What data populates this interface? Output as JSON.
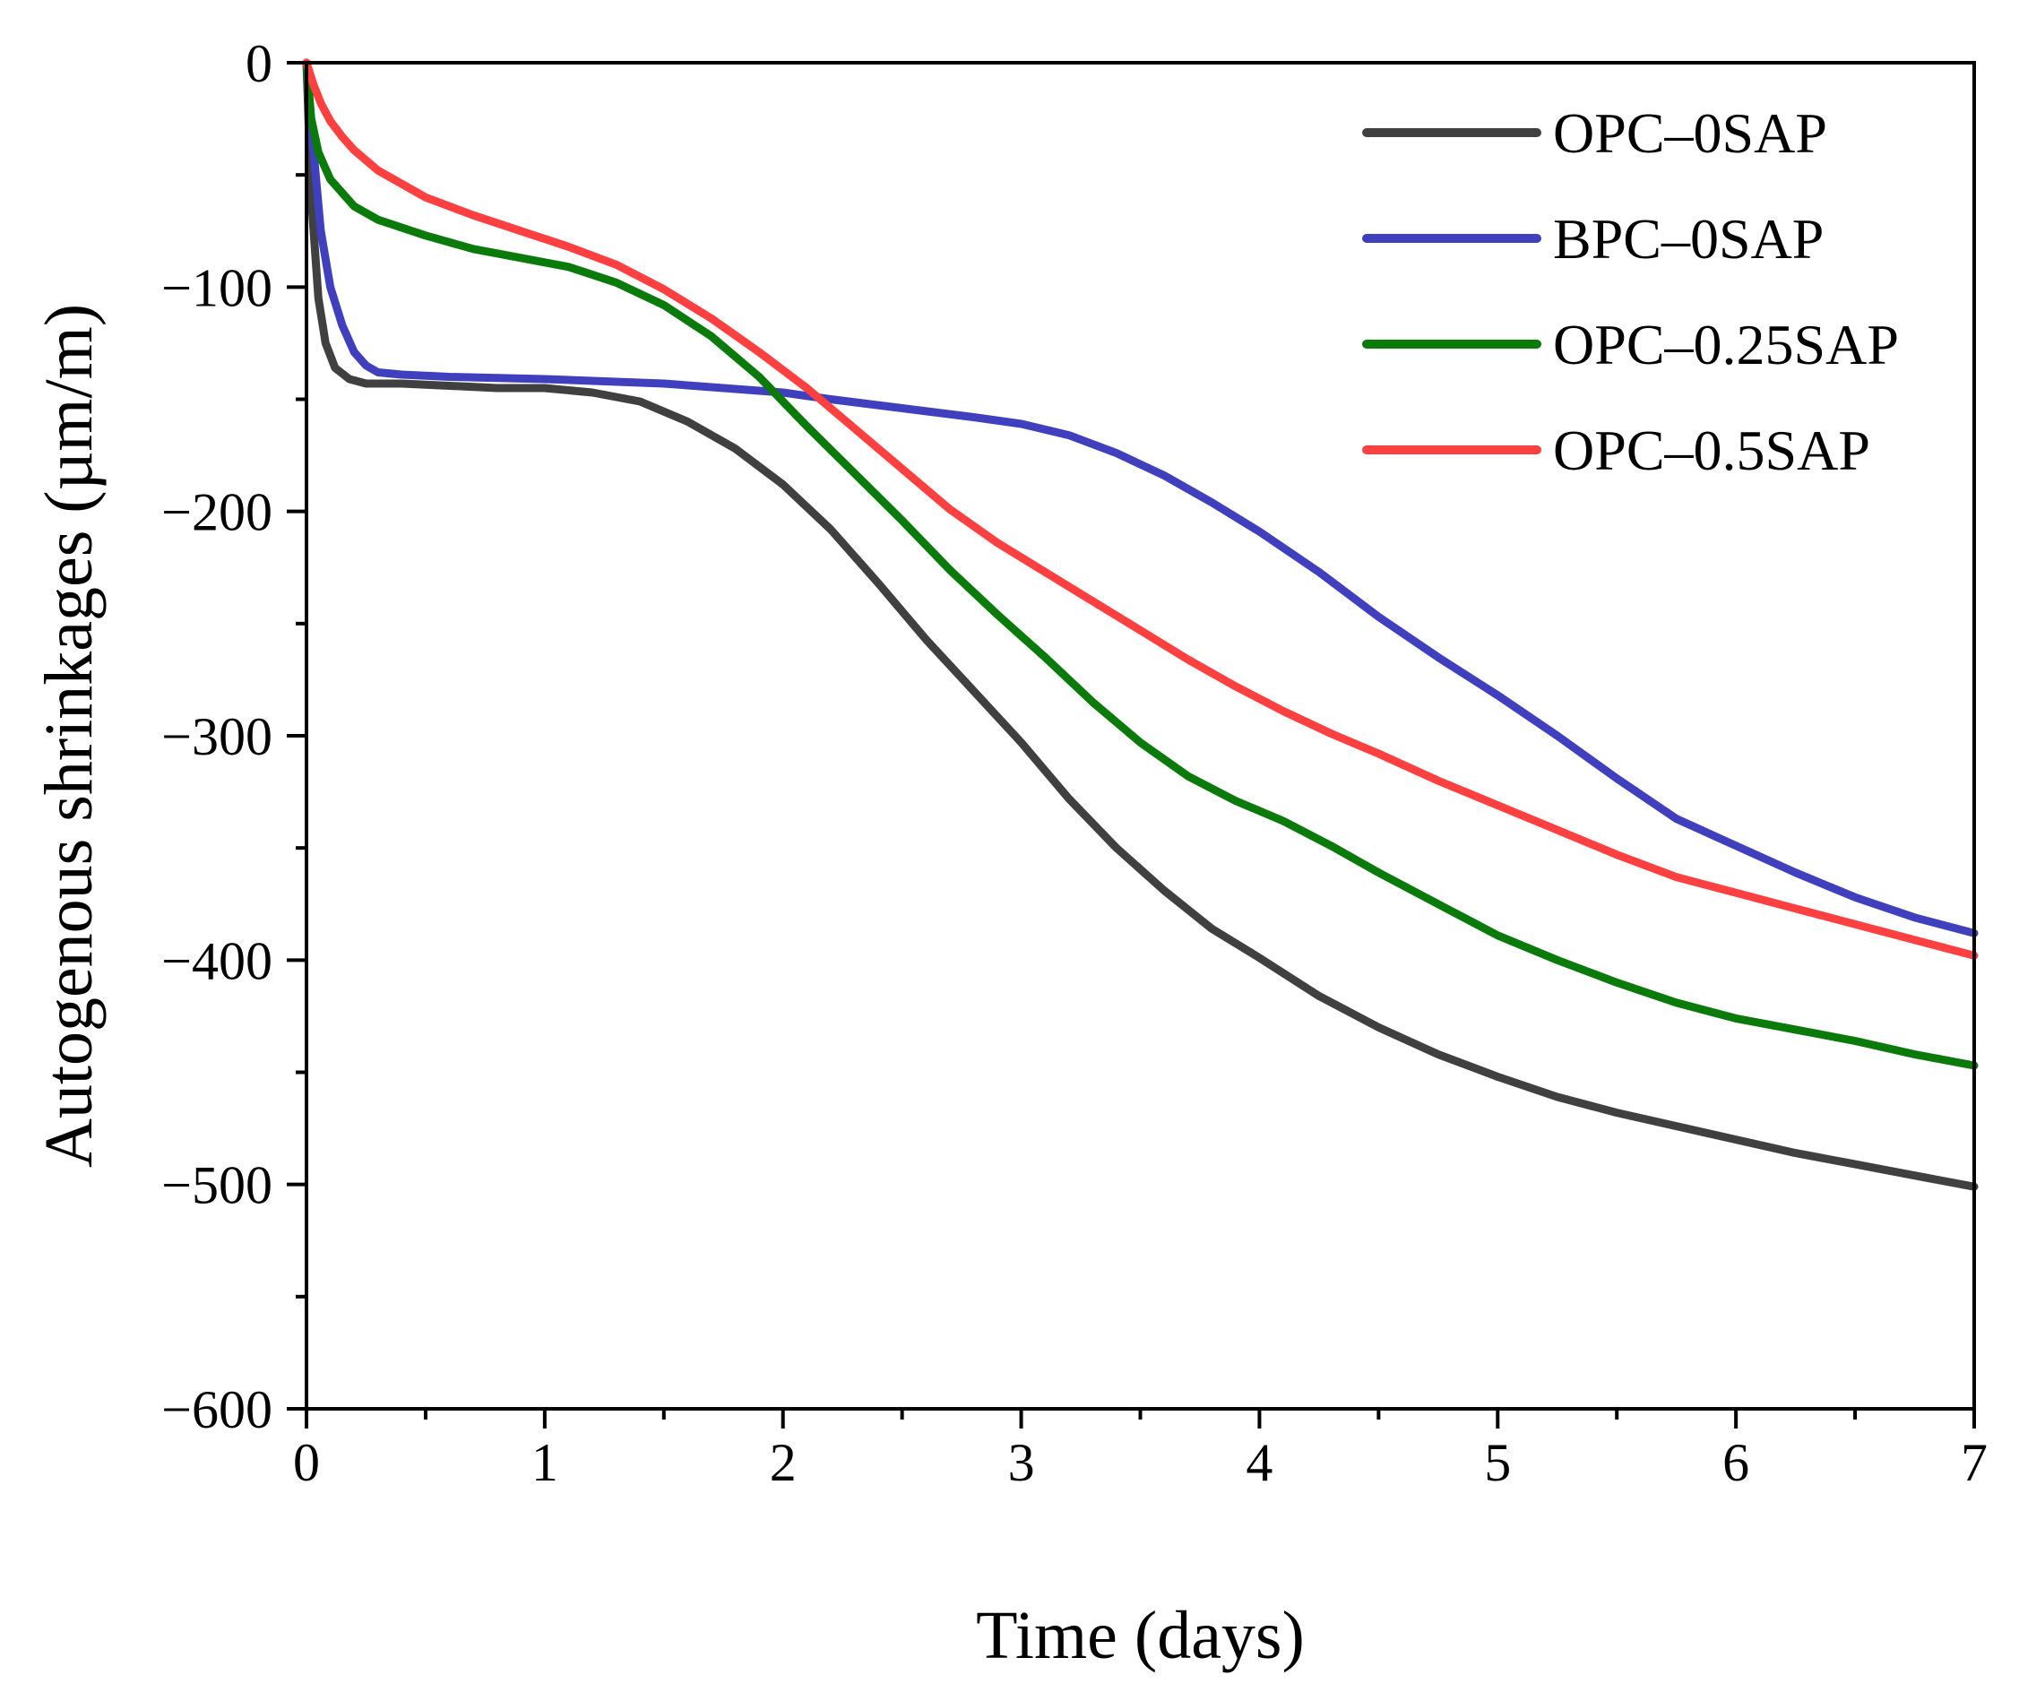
{
  "chart_data": {
    "type": "line",
    "title": "",
    "xlabel": "Time (days)",
    "ylabel": "Autogenous shrinkages (µm/m)",
    "xlim": [
      0,
      7
    ],
    "ylim": [
      -600,
      0
    ],
    "xticks": [
      0,
      1,
      2,
      3,
      4,
      5,
      6,
      7
    ],
    "xtick_labels": [
      "0",
      "1",
      "2",
      "3",
      "4",
      "5",
      "6",
      "7"
    ],
    "yticks": [
      0,
      -100,
      -200,
      -300,
      -400,
      -500,
      -600
    ],
    "ytick_labels": [
      "0",
      "−100",
      "−200",
      "−300",
      "−400",
      "−500",
      "−600"
    ],
    "grid": false,
    "legend_position": "top-right",
    "series": [
      {
        "name": "OPC–0SAP",
        "color": "#404040",
        "x": [
          0,
          0.02,
          0.05,
          0.08,
          0.12,
          0.18,
          0.25,
          0.4,
          0.6,
          0.8,
          1.0,
          1.2,
          1.4,
          1.6,
          1.8,
          2.0,
          2.2,
          2.4,
          2.6,
          2.8,
          3.0,
          3.2,
          3.4,
          3.6,
          3.8,
          4.0,
          4.25,
          4.5,
          4.75,
          5.0,
          5.25,
          5.5,
          5.75,
          6.0,
          6.25,
          6.5,
          6.75,
          7.0
        ],
        "y": [
          0,
          -60,
          -105,
          -125,
          -136,
          -141,
          -143,
          -143,
          -144,
          -145,
          -145,
          -147,
          -151,
          -160,
          -172,
          -188,
          -208,
          -232,
          -257,
          -280,
          -303,
          -328,
          -350,
          -369,
          -386,
          -399,
          -416,
          -430,
          -442,
          -452,
          -461,
          -468,
          -474,
          -480,
          -486,
          -491,
          -496,
          -501
        ]
      },
      {
        "name": "BPC–0SAP",
        "color": "#4040bf",
        "x": [
          0,
          0.03,
          0.06,
          0.1,
          0.15,
          0.2,
          0.25,
          0.3,
          0.4,
          0.6,
          1.0,
          1.5,
          2.0,
          2.2,
          2.5,
          2.8,
          3.0,
          3.2,
          3.4,
          3.6,
          3.8,
          4.0,
          4.25,
          4.5,
          4.75,
          5.0,
          5.25,
          5.5,
          5.75,
          6.0,
          6.25,
          6.5,
          6.75,
          7.0
        ],
        "y": [
          0,
          -40,
          -75,
          -100,
          -117,
          -129,
          -135,
          -138,
          -139,
          -140,
          -141,
          -143,
          -147,
          -150,
          -154,
          -158,
          -161,
          -166,
          -174,
          -184,
          -196,
          -209,
          -227,
          -247,
          -265,
          -282,
          -300,
          -319,
          -337,
          -349,
          -361,
          -372,
          -381,
          -388
        ]
      },
      {
        "name": "OPC–0.25SAP",
        "color": "#0a7a0a",
        "x": [
          0,
          0.02,
          0.05,
          0.1,
          0.2,
          0.3,
          0.5,
          0.7,
          0.9,
          1.1,
          1.3,
          1.5,
          1.7,
          1.9,
          2.1,
          2.3,
          2.5,
          2.7,
          2.9,
          3.1,
          3.3,
          3.5,
          3.7,
          3.9,
          4.1,
          4.3,
          4.5,
          4.75,
          5.0,
          5.25,
          5.5,
          5.75,
          6.0,
          6.25,
          6.5,
          6.75,
          7.0
        ],
        "y": [
          0,
          -25,
          -40,
          -52,
          -64,
          -70,
          -77,
          -83,
          -87,
          -91,
          -98,
          -108,
          -122,
          -140,
          -162,
          -183,
          -204,
          -226,
          -246,
          -265,
          -285,
          -303,
          -318,
          -329,
          -338,
          -349,
          -361,
          -375,
          -389,
          -400,
          -410,
          -419,
          -426,
          -431,
          -436,
          -442,
          -447
        ]
      },
      {
        "name": "OPC–0.5SAP",
        "color": "#ff4040",
        "x": [
          0,
          0.03,
          0.06,
          0.1,
          0.15,
          0.2,
          0.3,
          0.5,
          0.7,
          0.9,
          1.1,
          1.3,
          1.5,
          1.7,
          1.9,
          2.1,
          2.3,
          2.5,
          2.7,
          2.9,
          3.1,
          3.3,
          3.5,
          3.7,
          3.9,
          4.1,
          4.3,
          4.5,
          4.75,
          5.0,
          5.25,
          5.5,
          5.75,
          6.0,
          6.25,
          6.5,
          6.75,
          7.0
        ],
        "y": [
          0,
          -10,
          -18,
          -26,
          -33,
          -39,
          -48,
          -60,
          -68,
          -75,
          -82,
          -90,
          -101,
          -114,
          -129,
          -145,
          -163,
          -181,
          -199,
          -214,
          -227,
          -240,
          -253,
          -266,
          -278,
          -289,
          -299,
          -308,
          -320,
          -331,
          -342,
          -353,
          -363,
          -370,
          -377,
          -384,
          -391,
          -398
        ]
      }
    ]
  }
}
